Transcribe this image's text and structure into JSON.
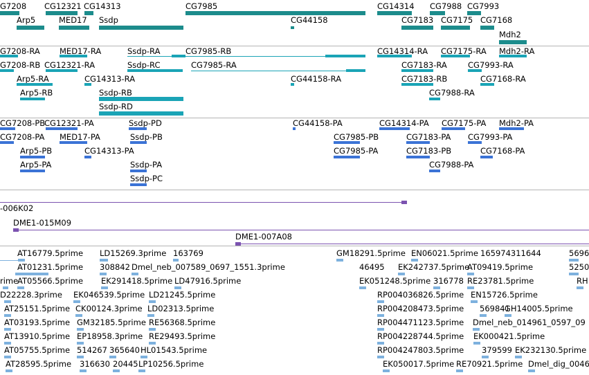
{
  "gene_track": {
    "labels": [
      "G7208",
      "CG12321",
      "CG14313",
      "CG7985",
      "CG14314",
      "CG7988",
      "CG7993",
      "Arp5",
      "MED17",
      "Ssdp",
      "CG44158",
      "CG7183",
      "CG7175",
      "CG7168",
      "Mdh2"
    ]
  },
  "transcript_track": {
    "labels": [
      "G7208-RA",
      "MED17-RA",
      "Ssdp-RA",
      "CG7985-RB",
      "CG14314-RA",
      "CG7175-RA",
      "Mdh2-RA",
      "G7208-RB",
      "CG12321-RA",
      "Ssdp-RC",
      "CG7985-RA",
      "CG7183-RA",
      "CG7993-RA",
      "Arp5-RA",
      "CG14313-RA",
      "CG44158-RA",
      "CG7183-RB",
      "CG7168-RA",
      "Arp5-RB",
      "Ssdp-RB",
      "CG7988-RA",
      "Ssdp-RD"
    ]
  },
  "protein_track": {
    "labels": [
      "CG7208-PB",
      "CG12321-PA",
      "Ssdp-PD",
      "CG44158-PA",
      "CG14314-PA",
      "CG7175-PA",
      "Mdh2-PA",
      "CG7208-PA",
      "MED17-PA",
      "Ssdp-PB",
      "CG7985-PB",
      "CG7183-PA",
      "CG7993-PA",
      "Arp5-PB",
      "CG14313-PA",
      "CG7985-PA",
      "CG7183-PB",
      "CG7168-PA",
      "Arp5-PA",
      "Ssdp-PA",
      "CG7988-PA",
      "Ssdp-PC"
    ]
  },
  "clone_track": {
    "labels": [
      "-006K02",
      "DME1-015M09",
      "DME1-007A08"
    ]
  },
  "est_track": {
    "labels": [
      "AT16779.5prime",
      "LD15269.3prime",
      "163769",
      "GM18291.5prime",
      "EN06021.5prime",
      "165974311644",
      "5696",
      "AT01231.5prime",
      "308842",
      "Dmel_neb_007589_0697_1551.3prime",
      "46495",
      "EK242737.5prime",
      "AT09419.5prime",
      "5250",
      "rime",
      "AT05566.5prime",
      "EK291418.5prime",
      "LD47916.5prime",
      "EK051248.5prime",
      "316778",
      "RE23781.5prime",
      "RH",
      "D22228.3prime",
      "EK046539.5prime",
      "LD21245.5prime",
      "RP004036826.5prime",
      "EN15726.5prime",
      "AT25151.5prime",
      "CK00124.3prime",
      "LD02313.5prime",
      "RP004208473.5prime",
      "569841",
      "GH14005.5prime",
      "AT03193.5prime",
      "GM32185.5prime",
      "RE56368.5prime",
      "RP004471123.5prime",
      "Dmel_neb_014961_0597_09",
      "AT13910.5prime",
      "EP18958.3prime",
      "RE29493.5prime",
      "RP004228744.5prime",
      "EK000421.5prime",
      "AT05755.5prime",
      "514267",
      "365640",
      "HL01543.5prime",
      "RP004247803.5prime",
      "379599",
      "EK232130.5prime",
      "AT28595.5prime",
      "316630",
      "20445",
      "LP10256.5prime",
      "EK050017.5prime",
      "RE70921.5prime",
      "Dmel_dig_0046"
    ]
  },
  "colors": {
    "gene": "#1c8c8c",
    "transcript": "#1aa4b6",
    "protein": "#3b73d6",
    "clone": "#7b52b0",
    "est": "#7db1de",
    "separator": "#b4b4b4"
  }
}
